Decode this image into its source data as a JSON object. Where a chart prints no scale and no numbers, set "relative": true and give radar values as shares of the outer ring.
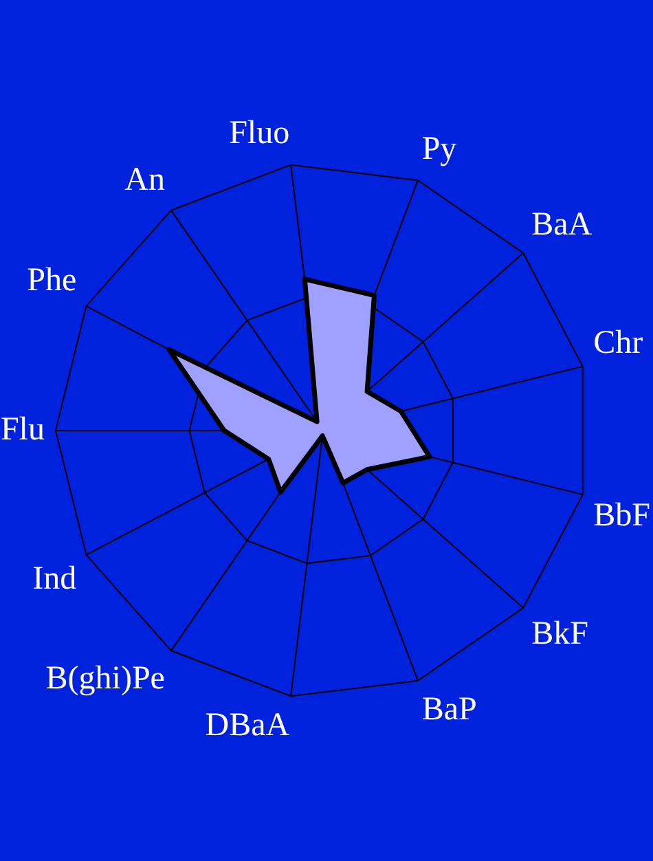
{
  "chart_data": {
    "type": "radar",
    "relative": true,
    "categories": [
      "Flu",
      "Phe",
      "An",
      "Fluo",
      "Py",
      "BaA",
      "Chr",
      "BbF",
      "BkF",
      "BaP",
      "DBaA",
      "B(ghi)Pe",
      "Ind"
    ],
    "series": [
      {
        "color": "#a0a0ff",
        "values": [
          0.37,
          0.65,
          0.04,
          0.57,
          0.54,
          0.22,
          0.3,
          0.41,
          0.22,
          0.21,
          0.02,
          0.28,
          0.23
        ]
      }
    ],
    "legend": false,
    "marker": "none"
  }
}
